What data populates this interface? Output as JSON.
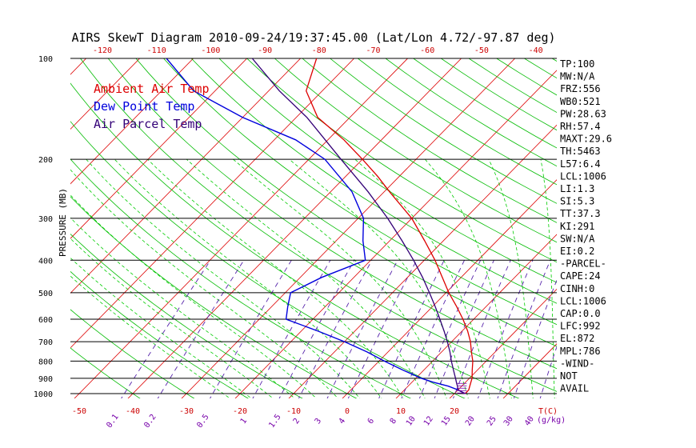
{
  "chart_data": {
    "type": "line",
    "title": "AIRS SkewT Diagram 2010-09-24/19:37:45.00 (Lat/Lon 4.72/-97.87 deg)",
    "ylabel": "PRESSURE (MB)",
    "x_unit_label": "T(C)",
    "mixing_ratio_unit_label": "(g/kg)",
    "y_scale": "log",
    "ylim": [
      1000,
      100
    ],
    "pressure_levels": [
      1000,
      900,
      800,
      700,
      600,
      500,
      400,
      300,
      200,
      100
    ],
    "bottom_temp_ticks": [
      -50,
      -40,
      -30,
      -20,
      -10,
      0,
      10,
      20
    ],
    "top_temp_ticks": [
      -120,
      -110,
      -100,
      -90,
      -80,
      -70,
      -60,
      -50,
      -40
    ],
    "mixing_ratio_ticks": [
      "0.1",
      "0.2",
      "0.5",
      "1",
      "1.5",
      "2",
      "3",
      "4",
      "6",
      "8",
      "10",
      "12",
      "15",
      "20",
      "25",
      "30",
      "40"
    ],
    "legend": [
      {
        "name": "Ambient Air Temp",
        "color": "#dd0000"
      },
      {
        "name": "Dew Point Temp",
        "color": "#0000dd"
      },
      {
        "name": "Air Parcel Temp",
        "color": "#330077"
      }
    ],
    "series": [
      {
        "name": "Ambient Air Temp",
        "color": "#dd0000",
        "points": [
          [
            1000,
            22
          ],
          [
            975,
            22
          ],
          [
            950,
            21.5
          ],
          [
            925,
            21
          ],
          [
            900,
            20.5
          ],
          [
            850,
            19
          ],
          [
            800,
            17.5
          ],
          [
            750,
            15.5
          ],
          [
            700,
            13.5
          ],
          [
            650,
            11
          ],
          [
            600,
            8
          ],
          [
            550,
            4.5
          ],
          [
            500,
            0.5
          ],
          [
            450,
            -3.5
          ],
          [
            400,
            -8
          ],
          [
            350,
            -13.5
          ],
          [
            300,
            -20
          ],
          [
            250,
            -29
          ],
          [
            225,
            -34
          ],
          [
            200,
            -40
          ],
          [
            175,
            -47
          ],
          [
            150,
            -56
          ],
          [
            125,
            -63
          ],
          [
            100,
            -67
          ]
        ]
      },
      {
        "name": "Dew Point Temp",
        "color": "#0000dd",
        "points": [
          [
            1000,
            22
          ],
          [
            975,
            20
          ],
          [
            950,
            17.5
          ],
          [
            925,
            14
          ],
          [
            900,
            11
          ],
          [
            850,
            6
          ],
          [
            800,
            1
          ],
          [
            750,
            -4
          ],
          [
            700,
            -10
          ],
          [
            650,
            -17
          ],
          [
            600,
            -25
          ],
          [
            550,
            -27
          ],
          [
            500,
            -29
          ],
          [
            450,
            -26
          ],
          [
            400,
            -21
          ],
          [
            350,
            -25
          ],
          [
            300,
            -29
          ],
          [
            250,
            -36
          ],
          [
            200,
            -47
          ],
          [
            175,
            -56
          ],
          [
            150,
            -70
          ],
          [
            125,
            -84
          ],
          [
            100,
            -95
          ]
        ]
      },
      {
        "name": "Air Parcel Temp",
        "color": "#330077",
        "points": [
          [
            1000,
            22
          ],
          [
            975,
            20
          ],
          [
            950,
            19.2
          ],
          [
            925,
            18.3
          ],
          [
            900,
            17.4
          ],
          [
            850,
            15.5
          ],
          [
            800,
            13.5
          ],
          [
            750,
            11.5
          ],
          [
            700,
            9.2
          ],
          [
            650,
            6.6
          ],
          [
            600,
            3.7
          ],
          [
            550,
            0.5
          ],
          [
            500,
            -3.1
          ],
          [
            450,
            -7.2
          ],
          [
            400,
            -12
          ],
          [
            350,
            -17.7
          ],
          [
            300,
            -24.5
          ],
          [
            250,
            -33
          ],
          [
            200,
            -44
          ],
          [
            175,
            -50.5
          ],
          [
            150,
            -58
          ],
          [
            125,
            -68
          ],
          [
            100,
            -79
          ]
        ]
      }
    ],
    "indices": [
      "TP:100",
      "MW:N/A",
      "FRZ:556",
      "WB0:521",
      "PW:28.63",
      "RH:57.4",
      "MAXT:29.6",
      "TH:5463",
      "L57:6.4",
      "LCL:1006",
      "LI:1.3",
      "SI:5.3",
      "TT:37.3",
      "KI:291",
      "SW:N/A",
      "EI:0.2",
      "-PARCEL-",
      "CAPE:24",
      "CINH:0",
      "LCL:1006",
      "CAP:0.0",
      "LFC:992",
      "EL:872",
      "MPL:786",
      "-WIND-",
      "NOT",
      "AVAIL"
    ]
  },
  "colors": {
    "isotherm": "#dd0000",
    "dry_adiabat": "#00bb00",
    "moist_adiabat": "#00cc00",
    "mixing_ratio": "#5522aa",
    "pressure_line": "#000000",
    "axis_text": "#000000",
    "tick_text_red": "#cc0000",
    "tick_text_purple": "#7700aa"
  }
}
